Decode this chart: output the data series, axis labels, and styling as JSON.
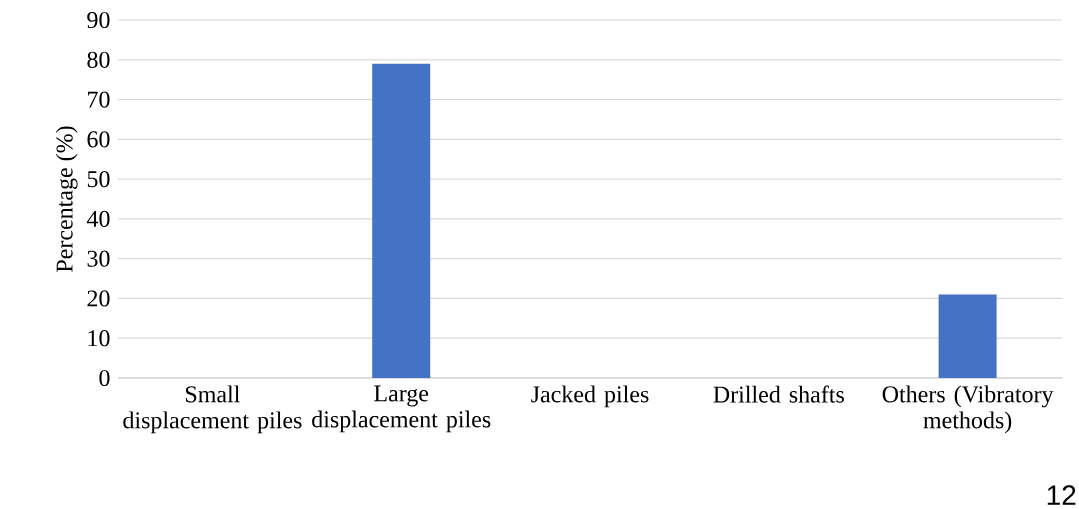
{
  "chart_data": {
    "type": "bar",
    "ylabel": "Percentage (%)",
    "categories": [
      "Small displacement piles",
      "Large displacement piles",
      "Jacked piles",
      "Drilled shafts",
      "Others (Vibratory methods)"
    ],
    "values": [
      0,
      79,
      0,
      0,
      21
    ],
    "color": "#4472c4",
    "ylim": [
      0,
      90
    ],
    "yticks": [
      0,
      10,
      20,
      30,
      40,
      50,
      60,
      70,
      80,
      90
    ],
    "grid": "y",
    "annotations": [
      "12"
    ]
  }
}
